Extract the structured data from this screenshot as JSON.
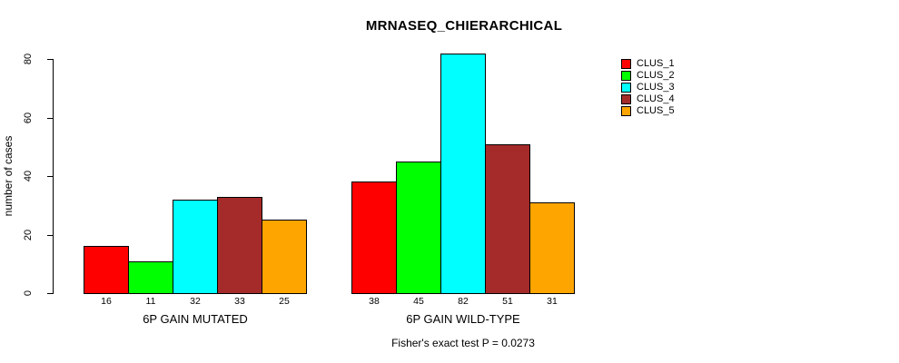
{
  "chart_data": {
    "type": "bar",
    "title": "MRNASEQ_CHIERARCHICAL",
    "ylabel": "number of cases",
    "xlabel": "",
    "ylim": [
      0,
      80
    ],
    "yticks": [
      0,
      20,
      40,
      60,
      80
    ],
    "grid": false,
    "legend_position": "right",
    "groups": [
      "6P GAIN MUTATED",
      "6P GAIN WILD-TYPE"
    ],
    "series": [
      {
        "name": "CLUS_1",
        "color": "#ff0000",
        "values": [
          16,
          38
        ]
      },
      {
        "name": "CLUS_2",
        "color": "#00ff00",
        "values": [
          11,
          45
        ]
      },
      {
        "name": "CLUS_3",
        "color": "#00ffff",
        "values": [
          32,
          82
        ]
      },
      {
        "name": "CLUS_4",
        "color": "#a52a2a",
        "values": [
          33,
          51
        ]
      },
      {
        "name": "CLUS_5",
        "color": "#ffa500",
        "values": [
          25,
          31
        ]
      }
    ],
    "bar_value_labels": {
      "6P GAIN MUTATED": [
        16,
        11,
        32,
        33,
        25
      ],
      "6P GAIN WILD-TYPE": [
        38,
        45,
        82,
        51,
        31
      ]
    },
    "annotation": "Fisher's exact test P = 0.0273"
  }
}
